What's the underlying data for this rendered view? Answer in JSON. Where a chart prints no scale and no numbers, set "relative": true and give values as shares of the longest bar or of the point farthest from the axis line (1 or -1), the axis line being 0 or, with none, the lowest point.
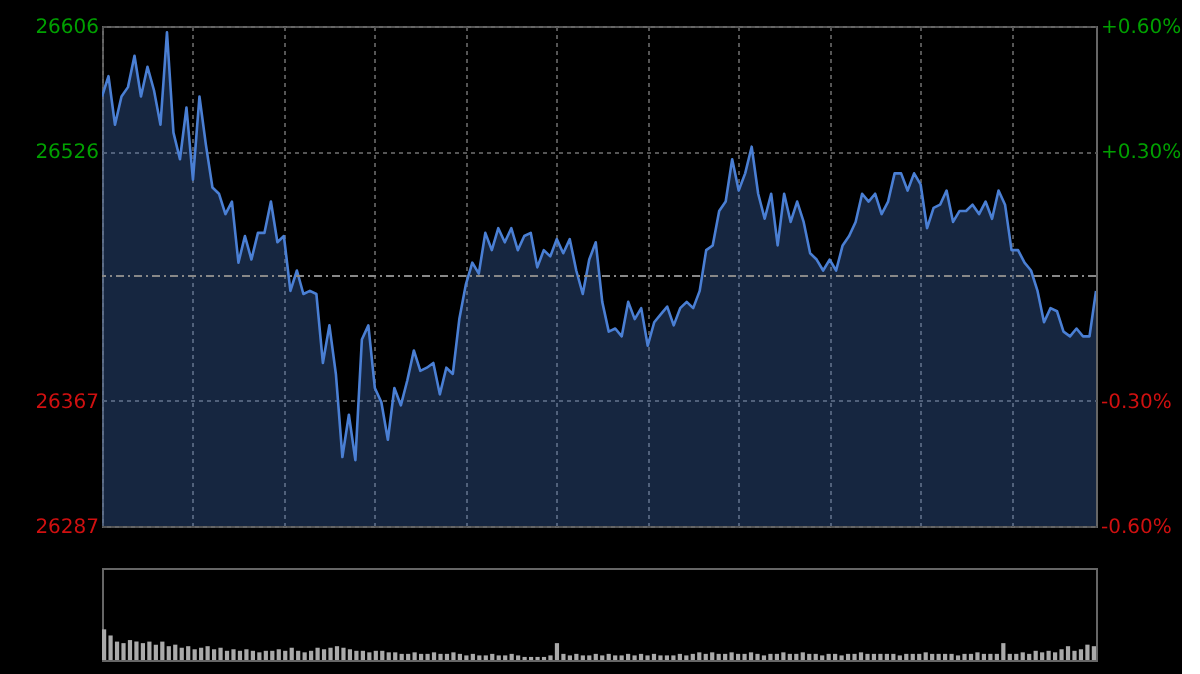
{
  "chart_data": [
    {
      "type": "area",
      "grid": true,
      "categories": [
        null,
        null,
        null,
        null,
        null,
        null,
        null,
        null,
        null,
        null,
        null,
        null,
        null,
        null,
        null,
        null,
        null,
        null,
        null,
        null,
        null,
        null,
        null,
        null,
        null,
        null,
        null,
        null,
        null,
        null,
        null,
        null,
        null,
        null,
        null,
        null,
        null,
        null,
        null,
        null,
        null,
        null,
        null,
        null,
        null,
        null,
        null,
        null,
        null,
        null,
        null,
        null,
        null,
        null,
        null,
        null,
        null,
        null,
        null,
        null,
        null,
        null,
        null,
        null,
        null,
        null,
        null,
        null,
        null,
        null,
        null,
        null,
        null,
        null,
        null,
        null,
        null,
        null,
        null,
        null,
        null,
        null,
        null,
        null,
        null,
        null,
        null,
        null,
        null,
        null,
        null,
        null,
        null,
        null,
        null,
        null,
        null,
        null,
        null,
        null,
        null,
        null,
        null,
        null,
        null,
        null,
        null,
        null,
        null,
        null,
        null,
        null,
        null,
        null,
        null,
        null,
        null,
        null,
        null,
        null,
        null,
        null,
        null,
        null,
        null,
        null,
        null,
        null,
        null,
        null,
        null,
        null,
        null,
        null,
        null,
        null,
        null,
        null,
        null,
        null,
        null,
        null,
        null,
        null,
        null,
        null,
        null,
        null,
        null,
        null,
        null,
        null,
        null,
        null
      ],
      "series": [
        {
          "color": "#4a7fd4",
          "values": [
            26561,
            26574,
            26543,
            26561,
            26567,
            26587,
            26561,
            26580,
            26565,
            26543,
            26602,
            26538,
            26521,
            26554,
            26508,
            26561,
            26530,
            26503,
            26499,
            26486,
            26494,
            26455,
            26472,
            26457,
            26474,
            26474,
            26494,
            26468,
            26472,
            26437,
            26450,
            26435,
            26437,
            26435,
            26391,
            26415,
            26384,
            26331,
            26358,
            26329,
            26406,
            26415,
            26375,
            26366,
            26342,
            26375,
            26364,
            26380,
            26399,
            26386,
            26388,
            26391,
            26371,
            26388,
            26384,
            26419,
            26441,
            26455,
            26448,
            26474,
            26463,
            26477,
            26468,
            26477,
            26463,
            26472,
            26474,
            26452,
            26463,
            26459,
            26470,
            26461,
            26470,
            26450,
            26435,
            26457,
            26468,
            26430,
            26411,
            26413,
            26408,
            26430,
            26419,
            26426,
            26402,
            26417,
            26422,
            26427,
            26415,
            26426,
            26430,
            26426,
            26437,
            26463,
            26466,
            26488,
            26494,
            26521,
            26501,
            26512,
            26529,
            26499,
            26483,
            26499,
            26466,
            26499,
            26481,
            26494,
            26481,
            26461,
            26457,
            26450,
            26457,
            26450,
            26466,
            26472,
            26481,
            26499,
            26494,
            26499,
            26486,
            26494,
            26512,
            26512,
            26501,
            26512,
            26505,
            26477,
            26490,
            26492,
            26501,
            26481,
            26488,
            26488,
            26492,
            26486,
            26494,
            26483,
            26501,
            26492,
            26463,
            26463,
            26455,
            26450,
            26437,
            26417,
            26426,
            26424,
            26411,
            26408,
            26413,
            26408,
            26408,
            26437
          ]
        }
      ],
      "ylim": [
        26287,
        26606
      ],
      "yticks": [
        26287,
        26367,
        26526,
        26606
      ],
      "y2lim": [
        -0.6,
        0.6
      ],
      "y2ticks": [
        {
          "value": -0.6,
          "label": "-0.60%"
        },
        {
          "value": -0.3,
          "label": "-0.30%"
        },
        {
          "value": 0.3,
          "label": "+0.30%"
        },
        {
          "value": 0.6,
          "label": "+0.60%"
        }
      ],
      "ref_lines": [
        {
          "axis": "y2",
          "value": 0,
          "line_style": "dashed"
        }
      ]
    },
    {
      "type": "bar",
      "relative": true,
      "categories": [
        null,
        null,
        null,
        null,
        null,
        null,
        null,
        null,
        null,
        null,
        null,
        null,
        null,
        null,
        null,
        null,
        null,
        null,
        null,
        null,
        null,
        null,
        null,
        null,
        null,
        null,
        null,
        null,
        null,
        null,
        null,
        null,
        null,
        null,
        null,
        null,
        null,
        null,
        null,
        null,
        null,
        null,
        null,
        null,
        null,
        null,
        null,
        null,
        null,
        null,
        null,
        null,
        null,
        null,
        null,
        null,
        null,
        null,
        null,
        null,
        null,
        null,
        null,
        null,
        null,
        null,
        null,
        null,
        null,
        null,
        null,
        null,
        null,
        null,
        null,
        null,
        null,
        null,
        null,
        null,
        null,
        null,
        null,
        null,
        null,
        null,
        null,
        null,
        null,
        null,
        null,
        null,
        null,
        null,
        null,
        null,
        null,
        null,
        null,
        null,
        null,
        null,
        null,
        null,
        null,
        null,
        null,
        null,
        null,
        null,
        null,
        null,
        null,
        null,
        null,
        null,
        null,
        null,
        null,
        null,
        null,
        null,
        null,
        null,
        null,
        null,
        null,
        null,
        null,
        null,
        null,
        null,
        null,
        null,
        null,
        null,
        null,
        null,
        null,
        null,
        null,
        null,
        null,
        null,
        null,
        null,
        null,
        null,
        null,
        null,
        null,
        null,
        null,
        null
      ],
      "series": [
        {
          "color": "#aaaaaa",
          "values": [
            1.0,
            0.8,
            0.6,
            0.55,
            0.65,
            0.6,
            0.55,
            0.6,
            0.5,
            0.6,
            0.45,
            0.5,
            0.4,
            0.45,
            0.35,
            0.4,
            0.45,
            0.35,
            0.4,
            0.3,
            0.35,
            0.3,
            0.35,
            0.3,
            0.25,
            0.3,
            0.3,
            0.35,
            0.3,
            0.4,
            0.3,
            0.25,
            0.3,
            0.4,
            0.35,
            0.4,
            0.45,
            0.4,
            0.35,
            0.3,
            0.3,
            0.25,
            0.3,
            0.3,
            0.25,
            0.25,
            0.2,
            0.2,
            0.25,
            0.2,
            0.2,
            0.25,
            0.2,
            0.2,
            0.25,
            0.2,
            0.15,
            0.2,
            0.15,
            0.15,
            0.2,
            0.15,
            0.15,
            0.2,
            0.15,
            0.1,
            0.1,
            0.1,
            0.1,
            0.15,
            0.55,
            0.2,
            0.15,
            0.2,
            0.15,
            0.15,
            0.2,
            0.15,
            0.2,
            0.15,
            0.15,
            0.2,
            0.15,
            0.2,
            0.15,
            0.2,
            0.15,
            0.15,
            0.15,
            0.2,
            0.15,
            0.2,
            0.25,
            0.2,
            0.25,
            0.2,
            0.2,
            0.25,
            0.2,
            0.2,
            0.25,
            0.2,
            0.15,
            0.2,
            0.2,
            0.25,
            0.2,
            0.2,
            0.25,
            0.2,
            0.2,
            0.15,
            0.2,
            0.2,
            0.15,
            0.2,
            0.2,
            0.25,
            0.2,
            0.2,
            0.2,
            0.2,
            0.2,
            0.15,
            0.2,
            0.2,
            0.2,
            0.25,
            0.2,
            0.2,
            0.2,
            0.2,
            0.15,
            0.2,
            0.2,
            0.25,
            0.2,
            0.2,
            0.2,
            0.55,
            0.2,
            0.2,
            0.25,
            0.2,
            0.3,
            0.25,
            0.3,
            0.25,
            0.35,
            0.45,
            0.3,
            0.35,
            0.5,
            0.45
          ]
        }
      ]
    }
  ]
}
